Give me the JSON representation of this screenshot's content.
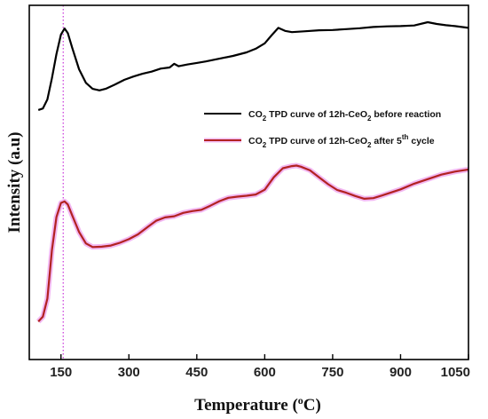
{
  "chart_data": {
    "type": "line",
    "xlabel": {
      "main": "Temperature (",
      "sup": "o",
      "end": "C)"
    },
    "ylabel": "Intensity (a.u)",
    "xlim": [
      80,
      1050
    ],
    "ylim": [
      0,
      100
    ],
    "xticks": [
      "150",
      "300",
      "450",
      "600",
      "750",
      "900",
      "1050"
    ],
    "grid": false,
    "legend_position": "right-middle",
    "reference_line": {
      "x": 155,
      "style": "dotted",
      "color": "#cc44dd"
    },
    "series": [
      {
        "name": {
          "pre": "CO",
          "sub1": "2",
          "mid": " TPD curve of 12h-CeO",
          "sub2": "2",
          "end": " before reaction"
        },
        "color": "#000000",
        "x": [
          100,
          110,
          120,
          130,
          140,
          150,
          158,
          165,
          175,
          190,
          205,
          220,
          235,
          250,
          270,
          290,
          310,
          330,
          350,
          370,
          390,
          400,
          410,
          430,
          450,
          470,
          500,
          530,
          560,
          580,
          600,
          615,
          630,
          645,
          660,
          690,
          720,
          750,
          780,
          810,
          840,
          870,
          900,
          930,
          960,
          980,
          1000,
          1020,
          1050
        ],
        "y": [
          71.5,
          72,
          75,
          82,
          90,
          96.5,
          98.5,
          97,
          92,
          85,
          80.5,
          78.5,
          78,
          78.6,
          80,
          81.5,
          82.6,
          83.5,
          84.2,
          85.2,
          85.6,
          86.8,
          86,
          86.6,
          87.1,
          87.6,
          88.5,
          89.4,
          90.6,
          91.8,
          93.6,
          96.2,
          98.7,
          97.7,
          97.3,
          97.6,
          97.9,
          98,
          98.3,
          98.6,
          99,
          99.2,
          99.3,
          99.5,
          100.6,
          100,
          99.6,
          99.3,
          98.7
        ]
      },
      {
        "name": {
          "pre": "CO",
          "sub1": "2",
          "mid": " TPD curve  of 12h-CeO",
          "sub2": "2",
          "end": " after 5",
          "sup": "th",
          "tail": " cycle"
        },
        "color": "#b22222",
        "halo": "#f2b8f2",
        "x": [
          100,
          110,
          120,
          130,
          140,
          150,
          158,
          165,
          175,
          190,
          205,
          220,
          240,
          260,
          280,
          300,
          320,
          340,
          360,
          380,
          400,
          420,
          440,
          460,
          480,
          500,
          520,
          540,
          560,
          580,
          600,
          620,
          640,
          660,
          670,
          680,
          700,
          720,
          740,
          760,
          780,
          800,
          820,
          840,
          860,
          880,
          900,
          930,
          960,
          990,
          1020,
          1050
        ],
        "y": [
          1.4,
          3,
          9,
          25,
          36,
          40.7,
          41.2,
          40.2,
          36.5,
          31.1,
          27.3,
          26.1,
          26.2,
          26.6,
          27.5,
          28.7,
          30.3,
          32.6,
          34.8,
          35.9,
          36.3,
          37.4,
          38,
          38.4,
          39.8,
          41.3,
          42.4,
          42.8,
          43.1,
          43.5,
          45.1,
          49.2,
          52.2,
          52.9,
          53.1,
          52.7,
          51.5,
          49.2,
          46.9,
          45,
          44.1,
          43,
          42.1,
          42.3,
          43.2,
          44.2,
          45.2,
          47.1,
          48.6,
          50.1,
          51.1,
          51.8
        ]
      }
    ]
  }
}
